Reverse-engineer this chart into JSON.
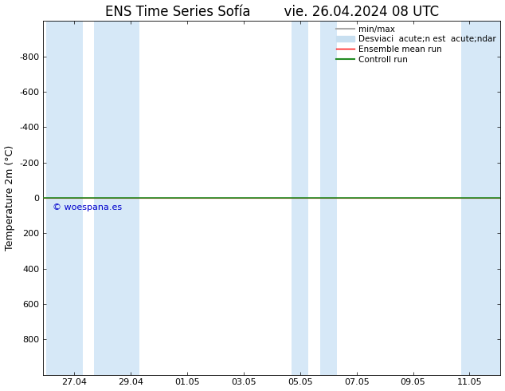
{
  "title": "ENS Time Series Sofía        vie. 26.04.2024 08 UTC",
  "ylabel": "Temperature 2m (°C)",
  "ylim_top": -1000,
  "ylim_bottom": 1000,
  "yticks": [
    -800,
    -600,
    -400,
    -200,
    0,
    200,
    400,
    600,
    800
  ],
  "x_tick_labels": [
    "27.04",
    "29.04",
    "01.05",
    "03.05",
    "05.05",
    "07.05",
    "09.05",
    "11.05"
  ],
  "x_tick_positions": [
    1,
    3,
    5,
    7,
    9,
    11,
    13,
    15
  ],
  "xlim": [
    -0.1,
    16.1
  ],
  "bg_color": "#ffffff",
  "plot_bg_color": "#ffffff",
  "shaded_bands": [
    [
      0.0,
      1.3
    ],
    [
      1.7,
      3.3
    ],
    [
      8.7,
      9.3
    ],
    [
      9.7,
      10.3
    ],
    [
      14.7,
      16.1
    ]
  ],
  "band_color": "#d6e8f7",
  "line_red": "#ff0000",
  "line_green": "#228B22",
  "line_gray": "#aaaaaa",
  "line_lightblue": "#c8dff0",
  "watermark": "© woespana.es",
  "watermark_color": "#0000cc",
  "title_fontsize": 12,
  "tick_fontsize": 8,
  "label_fontsize": 9,
  "watermark_fontsize": 8,
  "legend_fontsize": 7.5
}
